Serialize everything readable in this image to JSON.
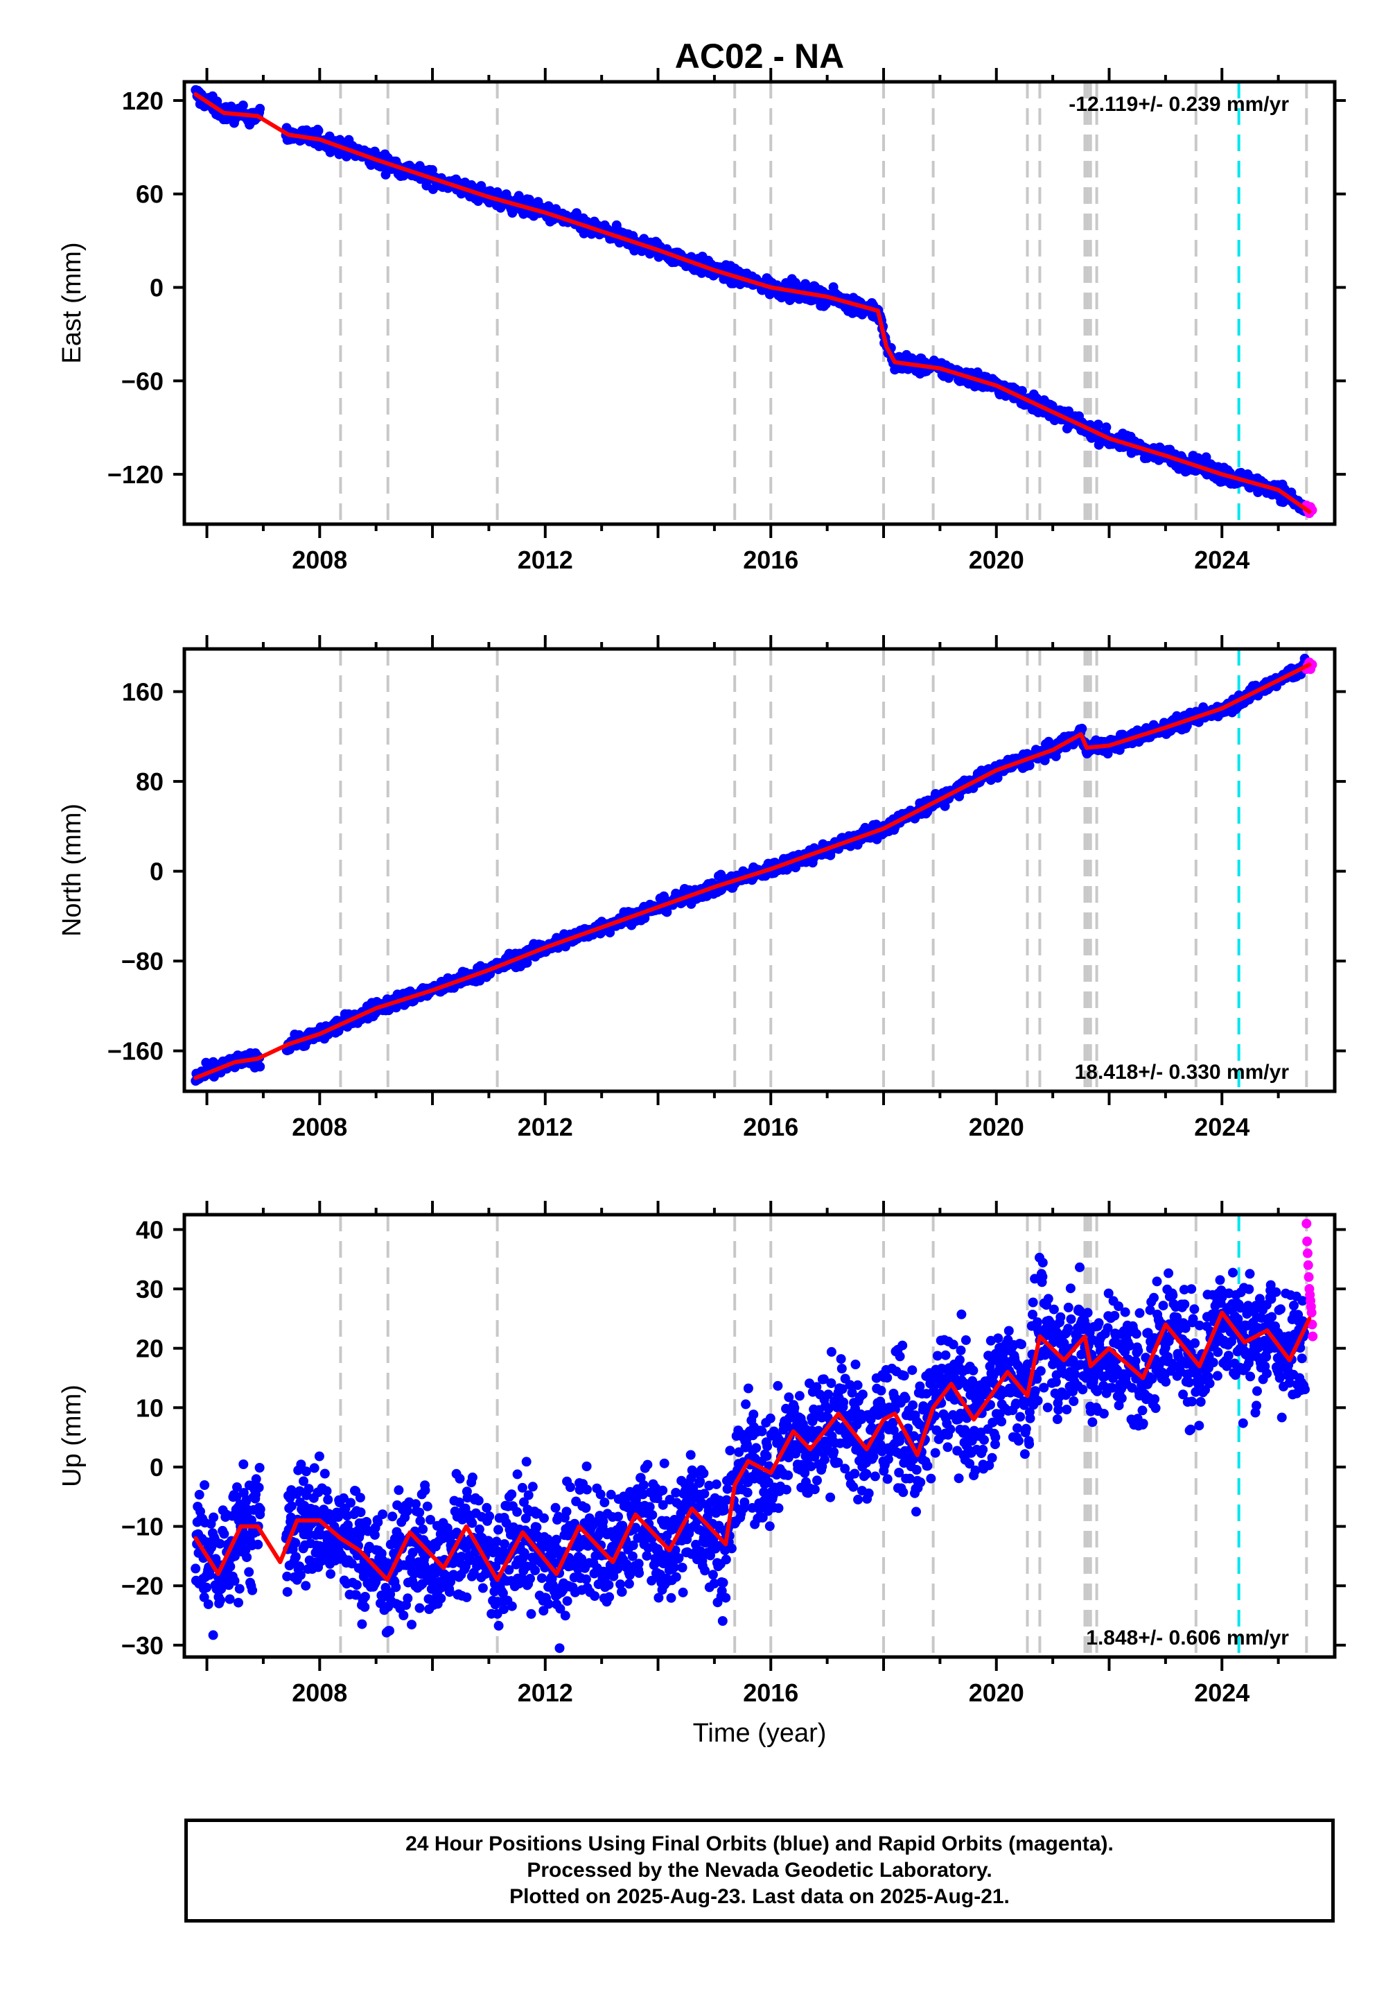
{
  "title": "AC02 - NA",
  "colors": {
    "final_orbits": "#0000ff",
    "rapid_orbits": "#ff00ff",
    "model": "#ff0000",
    "equipment_change": "#c8c8c8",
    "special_event": "#00e5ee"
  },
  "event_lines": {
    "gray": [
      2008.37,
      2009.21,
      2011.15,
      2015.36,
      2016.0,
      2018.0,
      2018.88,
      2020.55,
      2020.77,
      2021.57,
      2021.62,
      2021.67,
      2021.78,
      2023.54,
      2025.5
    ],
    "cyan": [
      2024.3
    ]
  },
  "x_axis": {
    "label": "Time (year)",
    "range": [
      2005.6,
      2026.0
    ],
    "ticks": [
      2008,
      2012,
      2016,
      2020,
      2024
    ]
  },
  "footer": {
    "line1": "24 Hour Positions Using Final Orbits (blue) and Rapid Orbits (magenta).",
    "line2": "Processed by the Nevada Geodetic Laboratory.",
    "line3": "Plotted on 2025-Aug-23. Last data on 2025-Aug-21."
  },
  "chart_data": [
    {
      "type": "scatter",
      "component": "east",
      "ylabel": "East (mm)",
      "ylim": [
        -152,
        132
      ],
      "yticks": [
        120,
        60,
        0,
        -60,
        -120
      ],
      "ytick_labels": [
        "120",
        "60",
        "0",
        "−60",
        "−120"
      ],
      "rate_text": "-12.119+/- 0.239 mm/yr",
      "rate_position": "top-right",
      "data_gap": [
        2006.95,
        2007.4
      ],
      "model_series": {
        "name": "model",
        "x": [
          2005.8,
          2006.3,
          2006.9,
          2007.45,
          2008.0,
          2009.0,
          2010.0,
          2011.0,
          2012.0,
          2013.0,
          2014.0,
          2015.0,
          2016.0,
          2017.0,
          2017.9,
          2018.05,
          2018.2,
          2019.0,
          2020.0,
          2021.0,
          2022.0,
          2023.0,
          2024.0,
          2025.0,
          2025.55
        ],
        "y": [
          124,
          112,
          110,
          98,
          95,
          82,
          70,
          58,
          48,
          36,
          24,
          11,
          0,
          -6,
          -15,
          -38,
          -48,
          -52,
          -63,
          -80,
          -97,
          -108,
          -120,
          -130,
          -144
        ]
      },
      "rapid_points": {
        "name": "rapid orbits",
        "x": [
          2025.5,
          2025.52,
          2025.55,
          2025.57,
          2025.6
        ],
        "y": [
          -140,
          -143,
          -145,
          -141,
          -143
        ]
      }
    },
    {
      "type": "scatter",
      "component": "north",
      "ylabel": "North (mm)",
      "ylim": [
        -196,
        198
      ],
      "yticks": [
        160,
        80,
        0,
        -80,
        -160
      ],
      "ytick_labels": [
        "160",
        "80",
        "0",
        "−80",
        "−160"
      ],
      "rate_text": "18.418+/- 0.330 mm/yr",
      "rate_position": "bottom-right",
      "data_gap": [
        2006.95,
        2007.4
      ],
      "model_series": {
        "name": "model",
        "x": [
          2005.8,
          2006.5,
          2006.9,
          2007.45,
          2008.0,
          2009.0,
          2010.0,
          2011.0,
          2012.0,
          2013.0,
          2014.0,
          2015.0,
          2016.0,
          2017.0,
          2018.0,
          2019.0,
          2020.0,
          2021.0,
          2021.5,
          2021.6,
          2022.0,
          2023.0,
          2024.0,
          2025.0,
          2025.55
        ],
        "y": [
          -184,
          -170,
          -167,
          -154,
          -145,
          -122,
          -106,
          -88,
          -68,
          -50,
          -32,
          -14,
          2,
          20,
          38,
          64,
          90,
          108,
          122,
          110,
          112,
          128,
          145,
          170,
          184
        ]
      },
      "rapid_points": {
        "name": "rapid orbits",
        "x": [
          2025.5,
          2025.52,
          2025.55,
          2025.57,
          2025.6
        ],
        "y": [
          180,
          183,
          186,
          180,
          184
        ]
      }
    },
    {
      "type": "scatter",
      "component": "up",
      "ylabel": "Up (mm)",
      "ylim": [
        -32,
        42.5
      ],
      "yticks": [
        40,
        30,
        20,
        10,
        0,
        -10,
        -20,
        -30
      ],
      "ytick_labels": [
        "40",
        "30",
        "20",
        "10",
        "0",
        "−10",
        "−20",
        "−30"
      ],
      "rate_text": "1.848+/- 0.606 mm/yr",
      "rate_position": "bottom-right",
      "data_gap": [
        2006.95,
        2007.4
      ],
      "model_series": {
        "name": "model",
        "x": [
          2005.8,
          2006.2,
          2006.6,
          2006.9,
          2007.3,
          2007.6,
          2008.0,
          2008.37,
          2008.7,
          2009.2,
          2009.6,
          2010.2,
          2010.6,
          2011.15,
          2011.6,
          2012.2,
          2012.6,
          2013.2,
          2013.6,
          2014.2,
          2014.6,
          2015.2,
          2015.36,
          2015.6,
          2016.0,
          2016.4,
          2016.7,
          2017.2,
          2017.7,
          2018.0,
          2018.2,
          2018.6,
          2018.88,
          2019.2,
          2019.6,
          2020.2,
          2020.55,
          2020.77,
          2021.2,
          2021.57,
          2021.67,
          2022.0,
          2022.6,
          2023.0,
          2023.6,
          2024.0,
          2024.4,
          2024.8,
          2025.2,
          2025.55
        ],
        "y": [
          -12,
          -18,
          -10,
          -10,
          -16,
          -9,
          -9,
          -12,
          -14,
          -19,
          -11,
          -17,
          -10,
          -19,
          -11,
          -18,
          -10,
          -16,
          -8,
          -14,
          -7,
          -13,
          -3,
          1,
          -1,
          6,
          3,
          9,
          3,
          8,
          9,
          2,
          10,
          14,
          8,
          16,
          12,
          22,
          18,
          22,
          17,
          20,
          15,
          24,
          17,
          26,
          21,
          23,
          18,
          25
        ]
      },
      "rapid_points": {
        "name": "rapid orbits",
        "x": [
          2025.5,
          2025.51,
          2025.52,
          2025.53,
          2025.54,
          2025.55,
          2025.56,
          2025.57,
          2025.58,
          2025.59,
          2025.6,
          2025.61
        ],
        "y": [
          41,
          38,
          36,
          34,
          32,
          30,
          29,
          28,
          27,
          26,
          24,
          22
        ]
      }
    }
  ]
}
